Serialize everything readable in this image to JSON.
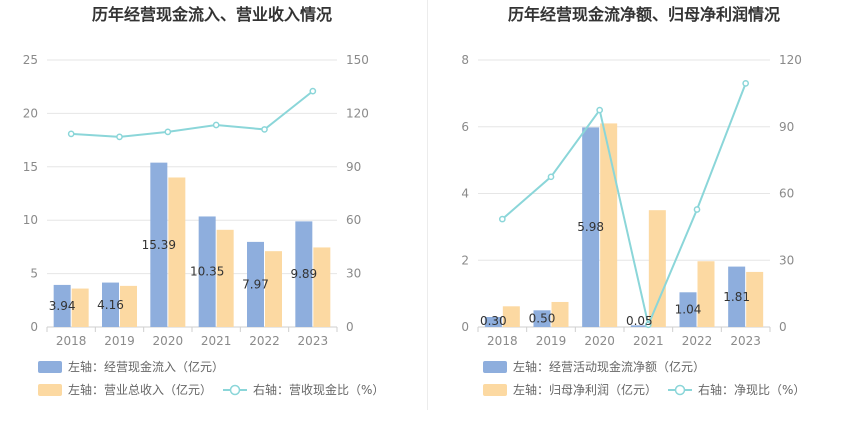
{
  "charts": [
    {
      "type": "bar",
      "title": "历年经营现金流入、营业收入情况",
      "categories": [
        "2018",
        "2019",
        "2020",
        "2021",
        "2022",
        "2023"
      ],
      "y_left_ticks": [
        "0",
        "5",
        "10",
        "15",
        "20",
        "25"
      ],
      "y_right_ticks": [
        "0",
        "30",
        "60",
        "90",
        "120",
        "150"
      ],
      "ylim_left": [
        0,
        25
      ],
      "ylim_right": [
        0,
        150
      ],
      "series": [
        {
          "name": "左轴：经营现金流入（亿元）",
          "type": "bar",
          "axis": "left",
          "color": "#8eaedd",
          "values": [
            3.94,
            4.16,
            15.39,
            10.35,
            7.97,
            9.89
          ],
          "labels": [
            "3.94",
            "4.16",
            "15.39",
            "10.35",
            "7.97",
            "9.89"
          ]
        },
        {
          "name": "左轴：营业总收入（亿元）",
          "type": "bar",
          "axis": "left",
          "color": "#fcd9a2",
          "values": [
            3.6,
            3.85,
            14.0,
            9.1,
            7.1,
            7.45
          ]
        },
        {
          "name": "右轴：营收现金比（%）",
          "type": "line",
          "axis": "right",
          "color": "#8bd6d9",
          "values": [
            108.5,
            106.8,
            109.6,
            113.5,
            111.0,
            132.5
          ]
        }
      ]
    },
    {
      "type": "bar",
      "title": "历年经营现金流净额、归母净利润情况",
      "categories": [
        "2018",
        "2019",
        "2020",
        "2021",
        "2022",
        "2023"
      ],
      "y_left_ticks": [
        "0",
        "2",
        "4",
        "6",
        "8"
      ],
      "y_right_ticks": [
        "0",
        "30",
        "60",
        "90",
        "120"
      ],
      "ylim_left": [
        0,
        8
      ],
      "ylim_right": [
        0,
        120
      ],
      "series": [
        {
          "name": "左轴：经营活动现金流净额（亿元）",
          "type": "bar",
          "axis": "left",
          "color": "#8eaedd",
          "values": [
            0.3,
            0.5,
            5.98,
            0.05,
            1.04,
            1.81
          ],
          "labels": [
            "0.30",
            "0.50",
            "5.98",
            "0.05",
            "1.04",
            "1.81"
          ]
        },
        {
          "name": "左轴：归母净利润（亿元）",
          "type": "bar",
          "axis": "left",
          "color": "#fcd9a2",
          "values": [
            0.62,
            0.75,
            6.1,
            3.5,
            1.97,
            1.65
          ]
        },
        {
          "name": "右轴：净现比（%）",
          "type": "line",
          "axis": "right",
          "color": "#8bd6d9",
          "values": [
            48.5,
            67.5,
            97.5,
            1.0,
            52.8,
            109.5
          ]
        }
      ]
    }
  ]
}
